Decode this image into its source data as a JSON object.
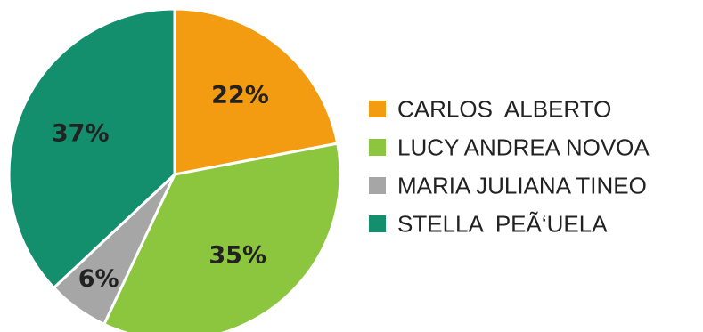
{
  "chart_data": {
    "type": "pie",
    "title": "",
    "legend_position": "right",
    "slices": [
      {
        "name": "CARLOS  ALBERTO",
        "value": 22,
        "label": "22%",
        "color": "#f39c12"
      },
      {
        "name": "LUCY ANDREA NOVOA",
        "value": 35,
        "label": "35%",
        "color": "#8cc63f"
      },
      {
        "name": "MARIA JULIANA TINEO",
        "value": 6,
        "label": "6%",
        "color": "#a6a6a6"
      },
      {
        "name": "STELLA  PEÃ‘UELA",
        "value": 37,
        "label": "37%",
        "color": "#148f6e"
      }
    ]
  }
}
